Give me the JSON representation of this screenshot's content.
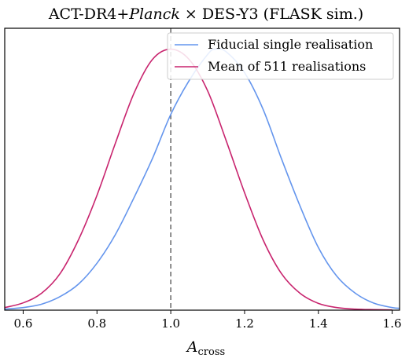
{
  "chart_data": {
    "type": "line",
    "title_prefix": "ACT-DR4+",
    "title_italic": "Planck",
    "title_suffix": " × DES-Y3 (FLASK sim.)",
    "xlabel_main": "A",
    "xlabel_sub": "cross",
    "ylabel": "",
    "xlim": [
      0.55,
      1.62
    ],
    "ylim": [
      0,
      1.08
    ],
    "x_ticks": [
      "0.6",
      "0.8",
      "1.0",
      "1.2",
      "1.4",
      "1.6"
    ],
    "x_tick_values": [
      0.6,
      0.8,
      1.0,
      1.2,
      1.4,
      1.6
    ],
    "y_ticks_shown": false,
    "reference_line_x": 1.0,
    "legend_position": "top-right",
    "series": [
      {
        "name": "Fiducial single realisation",
        "color": "#6495ED",
        "x": [
          0.55,
          0.6,
          0.65,
          0.7,
          0.75,
          0.8,
          0.85,
          0.9,
          0.95,
          1.0,
          1.05,
          1.1,
          1.12,
          1.15,
          1.2,
          1.25,
          1.3,
          1.35,
          1.4,
          1.45,
          1.5,
          1.55,
          1.6,
          1.62
        ],
        "y": [
          0.004,
          0.01,
          0.023,
          0.052,
          0.1,
          0.18,
          0.29,
          0.43,
          0.58,
          0.75,
          0.88,
          0.98,
          1.0,
          0.99,
          0.91,
          0.77,
          0.58,
          0.4,
          0.24,
          0.13,
          0.065,
          0.027,
          0.01,
          0.007
        ]
      },
      {
        "name": "Mean of 511 realisations",
        "color": "#C8246E",
        "x": [
          0.55,
          0.6,
          0.65,
          0.7,
          0.75,
          0.8,
          0.85,
          0.9,
          0.95,
          1.0,
          1.05,
          1.1,
          1.15,
          1.2,
          1.25,
          1.3,
          1.35,
          1.4,
          1.45,
          1.5,
          1.55,
          1.6
        ],
        "y": [
          0.01,
          0.028,
          0.065,
          0.14,
          0.27,
          0.44,
          0.64,
          0.83,
          0.96,
          1.0,
          0.96,
          0.84,
          0.65,
          0.45,
          0.27,
          0.14,
          0.065,
          0.026,
          0.01,
          0.004,
          0.002,
          0.001
        ]
      }
    ]
  }
}
